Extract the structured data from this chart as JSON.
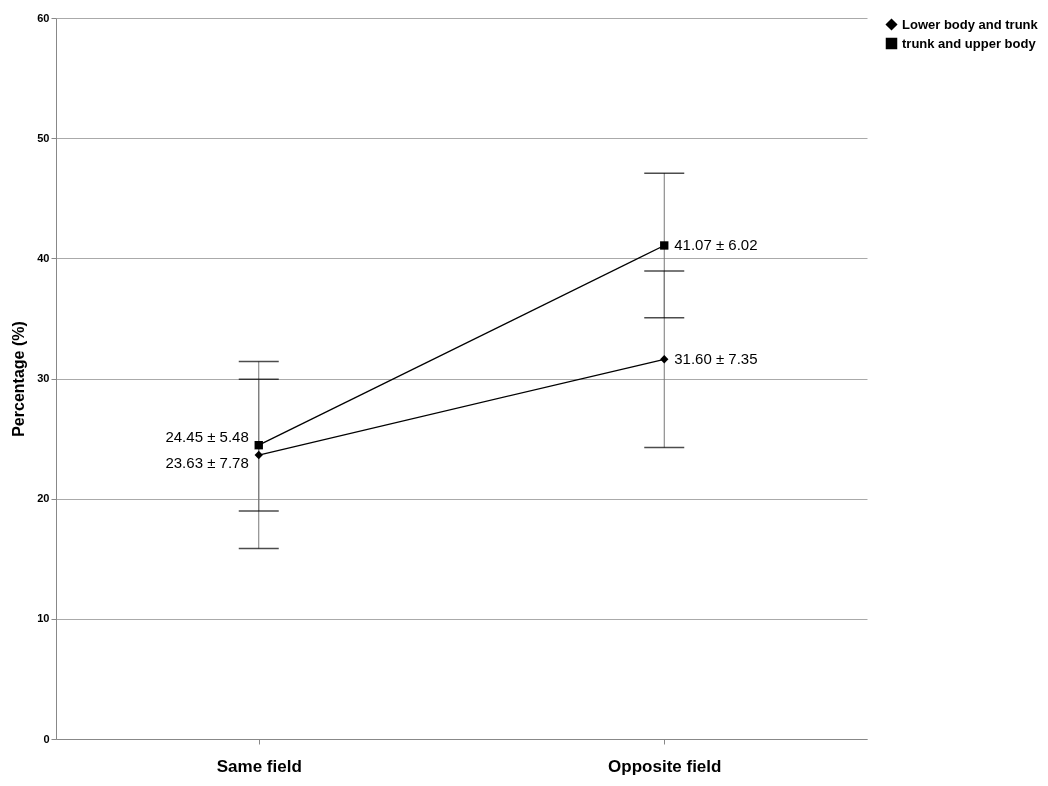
{
  "chart_data": {
    "type": "line",
    "ylabel": "Percentage (%)",
    "categories": [
      "Same field",
      "Opposite field"
    ],
    "series": [
      {
        "name": "Lower body and trunk",
        "color": "#000000",
        "marker": "diamond",
        "values": [
          23.63,
          31.6
        ],
        "errors": [
          7.78,
          7.35
        ],
        "value_labels": [
          "23.63 ± 7.78",
          "31.60 ± 7.35"
        ]
      },
      {
        "name": "trunk and upper body",
        "color": "#000000",
        "marker": "square",
        "values": [
          24.45,
          41.07
        ],
        "errors": [
          5.48,
          6.02
        ],
        "value_labels": [
          "24.45 ± 5.48",
          "41.07 ± 6.02"
        ]
      }
    ],
    "ylim": [
      0,
      60
    ],
    "yticks": [
      0,
      10,
      20,
      30,
      40,
      50,
      60
    ],
    "grid": "y",
    "legend": "right"
  }
}
